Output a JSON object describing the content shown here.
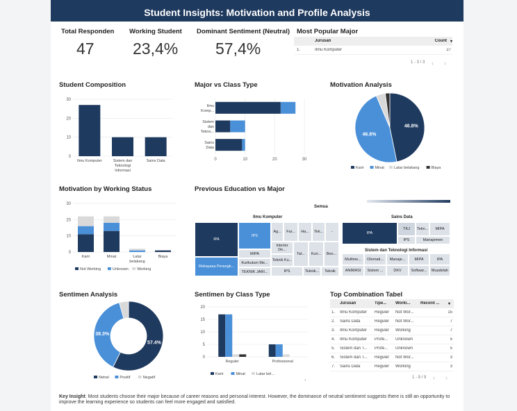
{
  "header": {
    "title": "Student Insights: Motivation and Profile Analysis"
  },
  "kpis": [
    {
      "title": "Total Responden",
      "value": "47"
    },
    {
      "title": "Working Student",
      "value": "23,4%"
    },
    {
      "title": "Dominant Sentiment (Neutral)",
      "value": "57,4%"
    }
  ],
  "popular_major": {
    "title": "Most Popular Major",
    "headers": [
      "Jurusan",
      "Count"
    ],
    "rows": [
      [
        "1.",
        "Ilmu Komputer",
        "27"
      ]
    ],
    "pager": "1 - 3 / 3"
  },
  "sections": {
    "composition": "Student Composition",
    "major_class": "Major vs Class Type",
    "motivation": "Motivation Analysis",
    "working": "Motivation by Working Status",
    "prev_edu": "Previous Education vs Major",
    "sentimen": "Sentimen Analysis",
    "sent_class": "Sentimen by Class Type",
    "top_combo": "Top Combination Tabel"
  },
  "chart_data": [
    {
      "type": "bar",
      "title": "Student Composition",
      "categories": [
        "Ilmu Komputer",
        "Sistem dan Teknologi Informasi",
        "Sains Data"
      ],
      "values": [
        27,
        10,
        10
      ],
      "ylim": [
        0,
        30
      ],
      "yticks": [
        0,
        10,
        20,
        30
      ],
      "color": "#1f3a5f"
    },
    {
      "type": "bar",
      "title": "Major vs Class Type",
      "orientation": "horizontal",
      "stacked": true,
      "categories": [
        "Ilmu Komp...",
        "Sistem dan Tekno...",
        "Sains Data"
      ],
      "series": [
        {
          "values": [
            22,
            5,
            9
          ],
          "color": "#1f3a5f"
        },
        {
          "values": [
            5,
            5,
            1
          ],
          "color": "#4a90d9"
        }
      ],
      "xlim": [
        0,
        30
      ],
      "xticks": [
        0,
        10,
        20,
        30
      ]
    },
    {
      "type": "pie",
      "title": "Motivation Analysis",
      "slices": [
        {
          "name": "Karir",
          "value": 46.8,
          "label": "46.8%",
          "color": "#1f3a5f"
        },
        {
          "name": "Minat",
          "value": 46.8,
          "label": "46.8%",
          "color": "#4a90d9"
        },
        {
          "name": "Latar belakang",
          "value": 4.3,
          "label": "",
          "color": "#d9d9d9"
        },
        {
          "name": "Biaya",
          "value": 2.1,
          "label": "",
          "color": "#333333"
        }
      ],
      "legend": "bottom"
    },
    {
      "type": "bar",
      "title": "Motivation by Working Status",
      "stacked": true,
      "categories": [
        "Karir",
        "Minat",
        "Latar belakang",
        "Biaya"
      ],
      "series": [
        {
          "name": "Not Working",
          "values": [
            11,
            13,
            0,
            1
          ],
          "color": "#1f3a5f"
        },
        {
          "name": "Unknown",
          "values": [
            5,
            5,
            1,
            0
          ],
          "color": "#4a90d9"
        },
        {
          "name": "Working",
          "values": [
            6,
            4,
            1,
            0
          ],
          "color": "#d9d9d9"
        }
      ],
      "ylim": [
        0,
        30
      ],
      "yticks": [
        0,
        10,
        20,
        30
      ],
      "legend": "bottom"
    },
    {
      "type": "pie",
      "title": "Sentimen Analysis",
      "donut": true,
      "slices": [
        {
          "name": "Netral",
          "value": 57.4,
          "label": "57.4%",
          "color": "#1f3a5f"
        },
        {
          "name": "Positif",
          "value": 38.3,
          "label": "38.3%",
          "color": "#4a90d9"
        },
        {
          "name": "Negatif",
          "value": 4.3,
          "label": "",
          "color": "#d9d9d9"
        }
      ],
      "legend": "bottom"
    },
    {
      "type": "bar",
      "title": "Sentimen by Class Type",
      "categories": [
        "Reguler",
        "Professional"
      ],
      "series": [
        {
          "name": "Karir",
          "values": [
            17,
            5
          ],
          "color": "#1f3a5f"
        },
        {
          "name": "Minat",
          "values": [
            17,
            5
          ],
          "color": "#4a90d9"
        },
        {
          "name": "Latar bel...",
          "values": [
            1,
            1
          ],
          "color": "#d9d9d9"
        },
        {
          "name": "",
          "values": [
            1,
            0
          ],
          "color": "#333333"
        }
      ],
      "ylim": [
        0,
        20
      ],
      "yticks": [
        0,
        5,
        10,
        15,
        20
      ],
      "legend": "bottom"
    }
  ],
  "treemap": {
    "root": "Semua",
    "groups": {
      "ik": "Ilmu Komputer",
      "sd": "Sains Data",
      "sti": "Sistem dan Teknologi Informasi"
    },
    "cells": {
      "ik_ipa": "IPA",
      "ik_ips": "IPS",
      "ik_rek": "Rekayasa Perangk...",
      "ik_mipa": "MIPA",
      "ik_kul": "Kurikulum Me...",
      "ik_tkj": "TEKNIK JARI...",
      "ik_ag": "Ag...",
      "ik_far": "Far...",
      "ik_ha": "Ha...",
      "ik_tek": "Tek...",
      "ik_dash": "-",
      "ik_int": "Interior De...",
      "ik_tk": "Teknik Ku...",
      "ik_ipss": "IPS",
      "ik_tat": "Tat...",
      "ik_kuri": "Kuri...",
      "ik_beo": "Beo...",
      "ik_tekn": "Teknik...",
      "ik_tekni": "Teknik",
      "sd_ipa": "IPA",
      "sd_tkj": "TKJ",
      "sd_tekn": "Tekn...",
      "sd_mipa": "MIPA",
      "sd_ips": "IPS",
      "sd_man": "Manajemen",
      "sti_mul": "Multime...",
      "sti_otom": "Otomati...",
      "sti_mana": "Manaje...",
      "sti_mipa": "MIPA",
      "sti_ipa": "IPA",
      "sti_anim": "ANIMASI",
      "sti_sist": "Sistem ...",
      "sti_dkv": "DKV",
      "sti_soft": "Softwar...",
      "sti_mua": "Muadelah"
    }
  },
  "top_combo": {
    "headers": [
      "Jurusan",
      "Tipe...",
      "Worki...",
      "Record ..."
    ],
    "rows": [
      [
        "1.",
        "Ilmu Komputer",
        "Reguler",
        "Not Wor...",
        "15"
      ],
      [
        "2.",
        "Sains Data",
        "Reguler",
        "Not Wor...",
        "7"
      ],
      [
        "3.",
        "Ilmu Komputer",
        "Reguler",
        "Working",
        "7"
      ],
      [
        "4.",
        "Ilmu Komputer",
        "Profe...",
        "Unknown",
        "5"
      ],
      [
        "5.",
        "Sistem dan T...",
        "Profe...",
        "Unknown",
        "5"
      ],
      [
        "6.",
        "Sistem dan T...",
        "Reguler",
        "Not Wor...",
        "3"
      ],
      [
        "7.",
        "Sains Data",
        "Reguler",
        "Working",
        "3"
      ]
    ],
    "pager": "1 - 9 / 9"
  },
  "insight": {
    "label": "Key Insight",
    "text": ": Most students choose their major because of career reasons and personal interest. However, the dominance of neutral sentiment suggests there is still an opportunity to improve the learning experience so students can feel more engaged and satisfied."
  }
}
